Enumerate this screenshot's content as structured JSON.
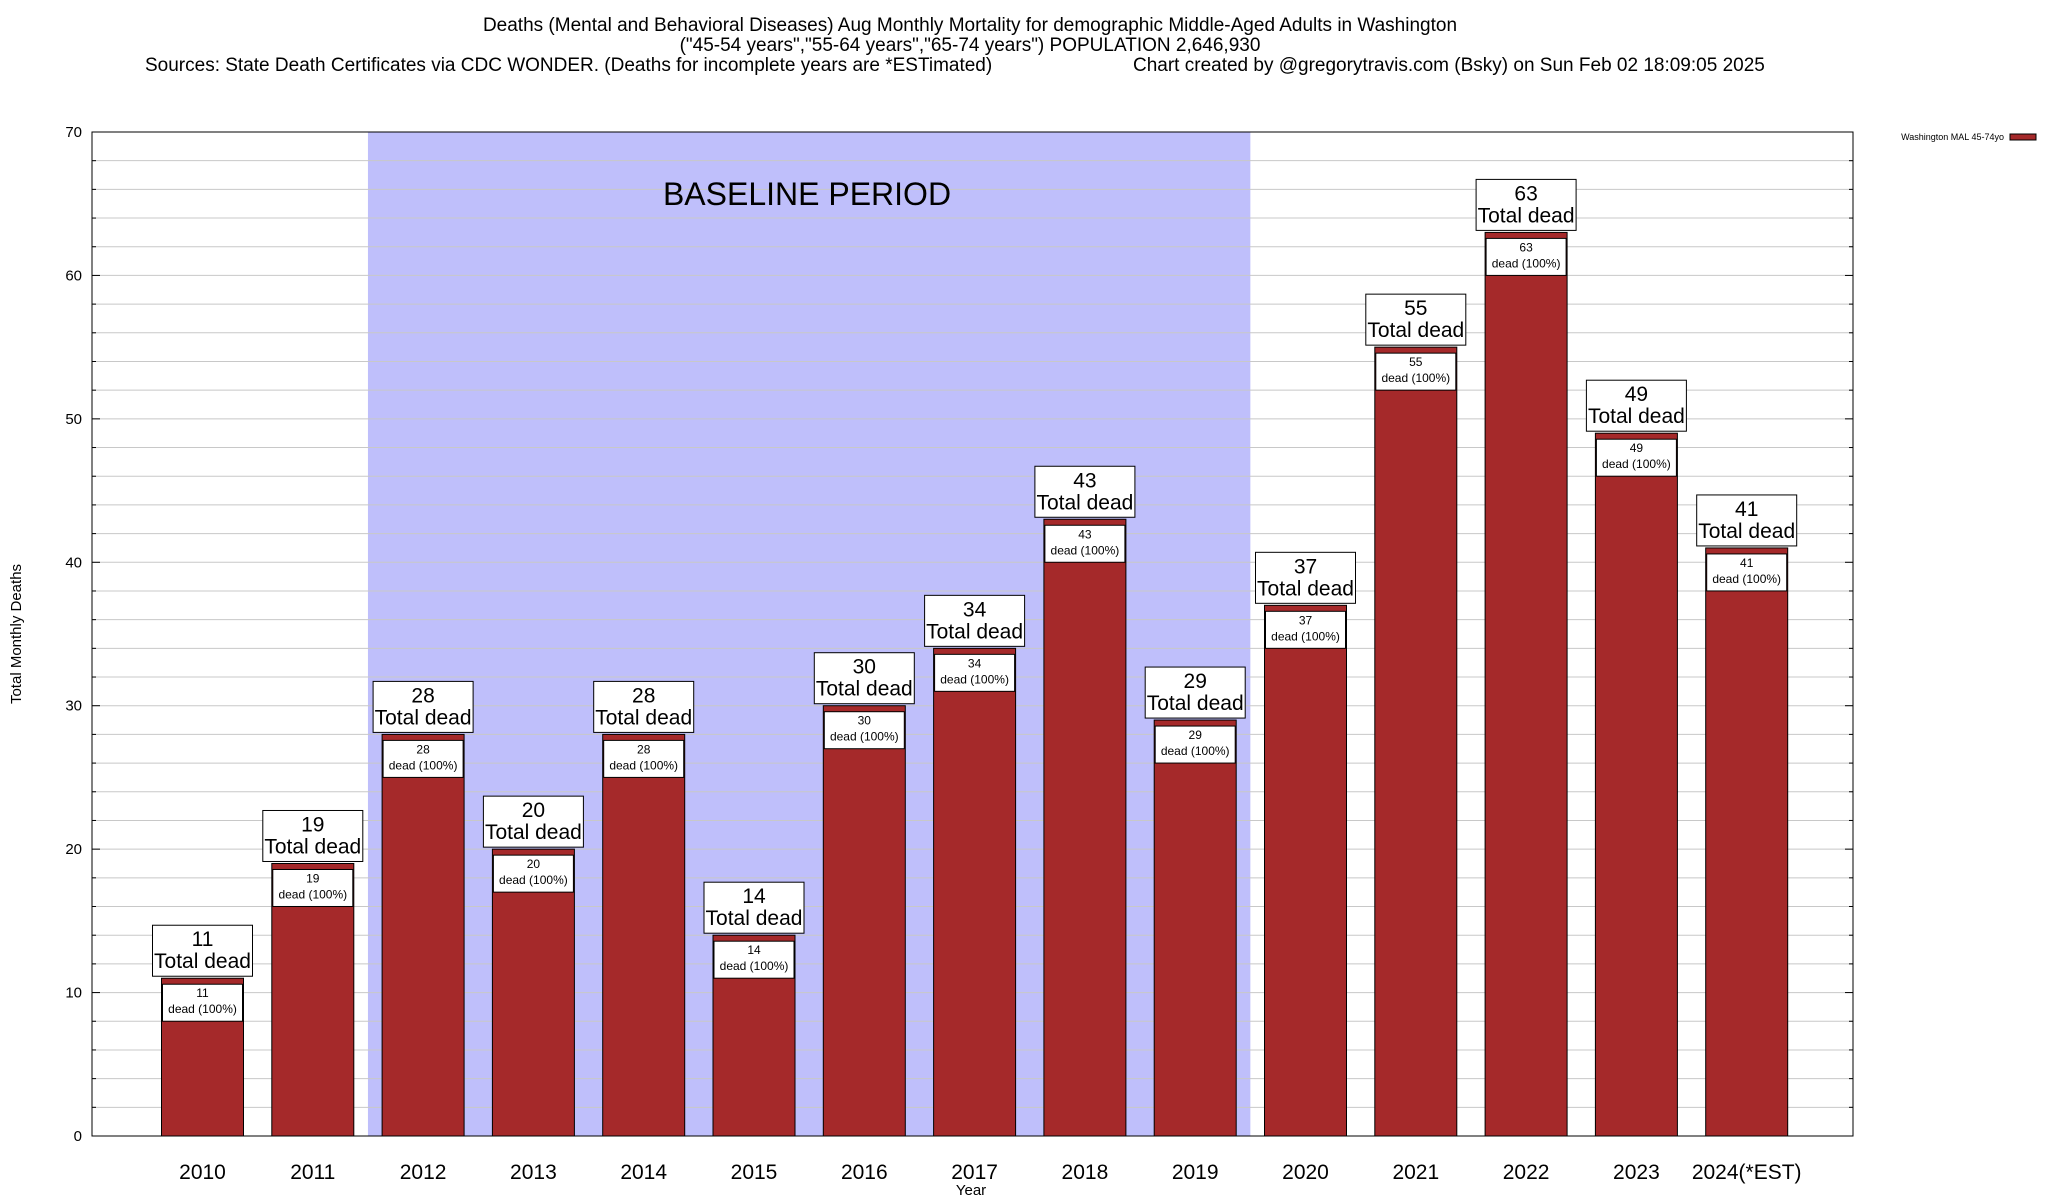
{
  "header": {
    "title_line1": "Deaths (Mental and Behavioral Diseases) Aug Monthly Mortality for demographic Middle-Aged Adults in Washington",
    "title_line2": "(\"45-54 years\",\"55-64 years\",\"65-74 years\") POPULATION 2,646,930",
    "sources": "Sources: State Death Certificates via CDC WONDER. (Deaths for incomplete years are *ESTimated)",
    "credit": "Chart created by @gregorytravis.com (Bsky) on Sun Feb 02 18:09:05 2025"
  },
  "annotation": {
    "baseline_label": "BASELINE PERIOD",
    "baseline_start": "2012",
    "baseline_end": "2019",
    "baseline_color": "#bfbffb"
  },
  "labels": {
    "total_suffix": "Total dead",
    "inner_suffix": "dead (100%)"
  },
  "legend": {
    "entry": "Washington MAL 45-74yo",
    "position": "top-right, outside plot"
  },
  "colors": {
    "bar_fill": "#a5292a",
    "grid": "#c8c8c8"
  },
  "chart_data": {
    "type": "bar",
    "xlabel": "Year",
    "ylabel": "Total Monthly Deaths",
    "ylim": [
      0,
      70
    ],
    "yticks": [
      0,
      10,
      20,
      30,
      40,
      50,
      60,
      70
    ],
    "grid": true,
    "categories": [
      "2010",
      "2011",
      "2012",
      "2013",
      "2014",
      "2015",
      "2016",
      "2017",
      "2018",
      "2019",
      "2020",
      "2021",
      "2022",
      "2023",
      "2024(*EST)"
    ],
    "series": [
      {
        "name": "Washington MAL 45-74yo",
        "values": [
          11,
          19,
          28,
          20,
          28,
          14,
          30,
          34,
          43,
          29,
          37,
          55,
          63,
          49,
          41
        ]
      }
    ]
  }
}
